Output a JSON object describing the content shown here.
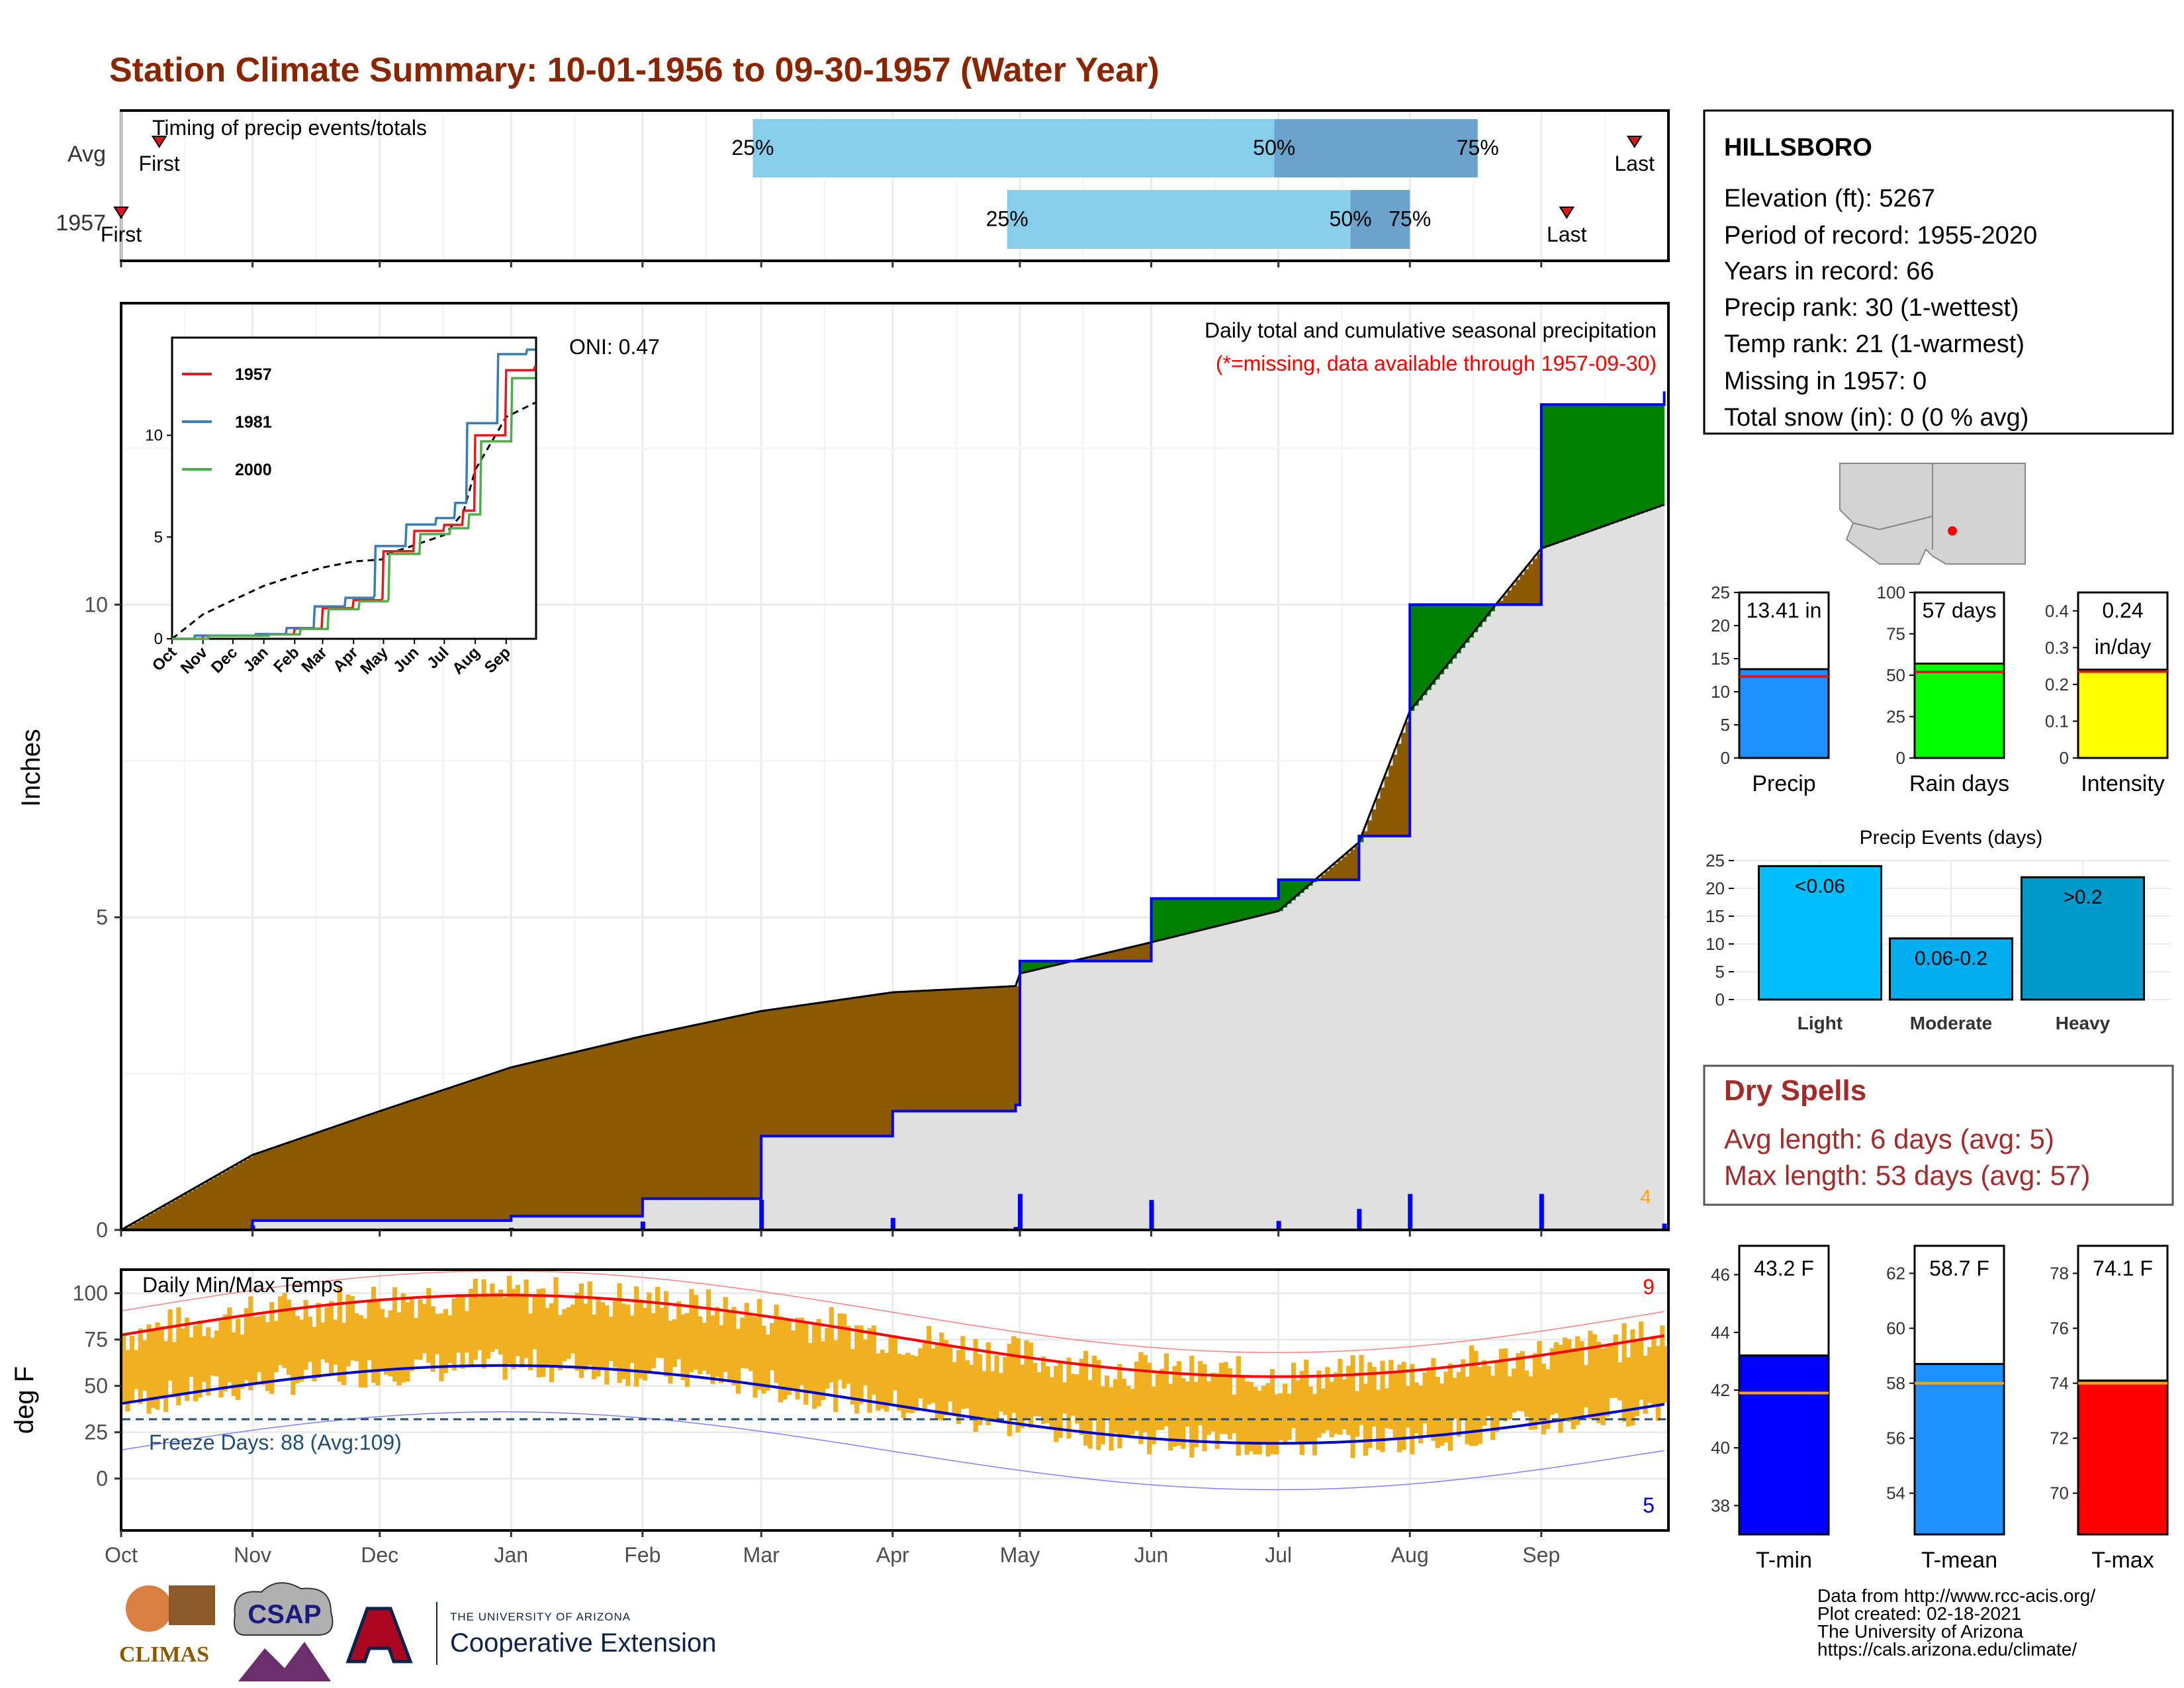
{
  "title": "Station Climate Summary: 10-01-1956 to 09-30-1957 (Water Year)",
  "months": [
    "Oct",
    "Nov",
    "Dec",
    "Jan",
    "Feb",
    "Mar",
    "Apr",
    "May",
    "Jun",
    "Jul",
    "Aug",
    "Sep"
  ],
  "timing_panel": {
    "label": "Timing of precip events/totals",
    "rows": [
      {
        "name": "Avg",
        "first_label": "First",
        "last_label": "Last",
        "p25": "25%",
        "p50": "50%",
        "p75": "75%"
      },
      {
        "name": "1957",
        "first_label": "First",
        "last_label": "Last",
        "p25": "25%",
        "p50": "50%",
        "p75": "75%"
      }
    ],
    "timing_days": {
      "Avg": {
        "first": 9,
        "p25": 149,
        "p50": 272,
        "p75": 320,
        "last": 357
      },
      "1957": {
        "first": 0,
        "p25": 209,
        "p50": 290,
        "p75": 304,
        "last": 341
      }
    },
    "colors": {
      "light": "#87ceeb",
      "dark": "#6aa4cc",
      "marker": "#d7191c"
    }
  },
  "precip_panel": {
    "ylabel": "Inches",
    "yticks": [
      0,
      5,
      10
    ],
    "ylim": [
      0,
      14.8
    ],
    "note1": "Daily total and cumulative seasonal precipitation",
    "note2": "(*=missing, data available through 1957-09-30)",
    "oni": "ONI: 0.47",
    "corner_value": "4",
    "colors": {
      "surplus": "#008000",
      "deficit": "#8b5a00",
      "normal": "#e0e0e0",
      "obs": "#0000ff",
      "missing": "#ffa500",
      "note2": "#ff0000"
    }
  },
  "inset": {
    "series": [
      {
        "name": "1957",
        "color": "#e41a1c"
      },
      {
        "name": "1981",
        "color": "#377eb8"
      },
      {
        "name": "2000",
        "color": "#4daf4a"
      }
    ],
    "yticks": [
      0,
      5,
      10
    ],
    "months": [
      "Oct",
      "Nov",
      "Dec",
      "Jan",
      "Feb",
      "Mar",
      "Apr",
      "May",
      "Jun",
      "Jul",
      "Aug",
      "Sep"
    ]
  },
  "temp_panel": {
    "ylabel": "deg F",
    "label": "Daily Min/Max Temps",
    "yticks": [
      0,
      25,
      50,
      75,
      100
    ],
    "freeze_text": "Freeze Days: 88 (Avg:109)",
    "hot_count": "9",
    "cold_count": "5",
    "colors": {
      "bar": "#f0b020",
      "max": "#ff0000",
      "min": "#0000cc",
      "freeze": "#1f4e79"
    }
  },
  "station_box": {
    "name": "HILLSBORO",
    "lines": [
      "Elevation (ft): 5267",
      "Period of record: 1955-2020",
      "Years in record: 66",
      "Precip rank: 30 (1-wettest)",
      "Temp rank: 21 (1-warmest)",
      "Missing in 1957: 0",
      "Total snow (in): 0 (0 % avg)"
    ]
  },
  "dry_spells": {
    "title": "Dry Spells",
    "line1": "Avg length: 6 days (avg: 5)",
    "line2": "Max length: 53 days (avg: 57)",
    "color": "#a52a2a"
  },
  "summary_bars": [
    {
      "label": "Precip",
      "value_text": "13.41 in",
      "value": 13.41,
      "avg": 12.3,
      "ymax": 25,
      "yticks": [
        0,
        5,
        10,
        15,
        20,
        25
      ],
      "color": "#1e90ff"
    },
    {
      "label": "Rain days",
      "value_text": "57 days",
      "value": 57,
      "avg": 52,
      "ymax": 100,
      "yticks": [
        0,
        25,
        50,
        75,
        100
      ],
      "color": "#00ff00"
    },
    {
      "label": "Intensity",
      "value_text": "0.24\nin/day",
      "value": 0.24,
      "avg": 0.235,
      "ymax": 0.45,
      "yticks": [
        0.0,
        0.1,
        0.2,
        0.3,
        0.4
      ],
      "color": "#ffff00"
    }
  ],
  "events": {
    "title": "Precip Events (days)",
    "yticks": [
      0,
      5,
      10,
      15,
      20,
      25
    ],
    "bars": [
      {
        "label": "Light",
        "text": "<0.06",
        "value": 24,
        "color": "#00bfff"
      },
      {
        "label": "Moderate",
        "text": "0.06-0.2",
        "value": 11,
        "color": "#00aeef"
      },
      {
        "label": "Heavy",
        "text": ">0.2",
        "value": 22,
        "color": "#0099cc"
      }
    ]
  },
  "temp_bars": [
    {
      "label": "T-min",
      "value_text": "43.2 F",
      "value": 43.2,
      "avg": 41.9,
      "ylim": [
        37,
        47
      ],
      "yticks": [
        38,
        40,
        42,
        44,
        46
      ],
      "color": "#0000ff"
    },
    {
      "label": "T-mean",
      "value_text": "58.7 F",
      "value": 58.7,
      "avg": 58,
      "ylim": [
        52.5,
        63
      ],
      "yticks": [
        54,
        56,
        58,
        60,
        62
      ],
      "color": "#1e90ff"
    },
    {
      "label": "T-max",
      "value_text": "74.1 F",
      "value": 74.1,
      "avg": 74,
      "ylim": [
        68.5,
        79
      ],
      "yticks": [
        70,
        72,
        74,
        76,
        78
      ],
      "color": "#ff0000"
    }
  ],
  "map_label": "",
  "footer": {
    "lines": [
      "Data from http://www.rcc-acis.org/",
      "Plot created: 02-18-2021",
      "The University of Arizona",
      "https://cals.arizona.edu/climate/"
    ],
    "logos": {
      "climas": "CLIMAS",
      "csap": "CSAP",
      "ua_small": "THE UNIVERSITY OF ARIZONA",
      "ua_big": "Cooperative Extension"
    }
  },
  "chart_data": {
    "type": "area",
    "title": "Station Climate Summary: 10-01-1956 to 09-30-1957 (Water Year)",
    "ylabel": "Inches",
    "ylim": [
      0,
      14.8
    ],
    "x": [
      "1956-10-01",
      "1956-11-01",
      "1956-12-01",
      "1957-01-01",
      "1957-02-01",
      "1957-03-01",
      "1957-04-01",
      "1957-04-30",
      "1957-05-01",
      "1957-06-01",
      "1957-07-01",
      "1957-07-20",
      "1957-08-01",
      "1957-09-01",
      "1957-09-30"
    ],
    "series": [
      {
        "name": "1957",
        "values": [
          0,
          0.15,
          0.15,
          0.22,
          0.5,
          1.5,
          1.9,
          2.0,
          4.3,
          5.3,
          5.6,
          6.3,
          10.0,
          13.2,
          13.41
        ]
      },
      {
        "name": "",
        "values": [
          0,
          1.2,
          1.9,
          2.6,
          3.1,
          3.5,
          3.8,
          3.9,
          4.1,
          4.6,
          5.1,
          6.2,
          8.3,
          10.9,
          11.6
        ]
      }
    ]
  }
}
